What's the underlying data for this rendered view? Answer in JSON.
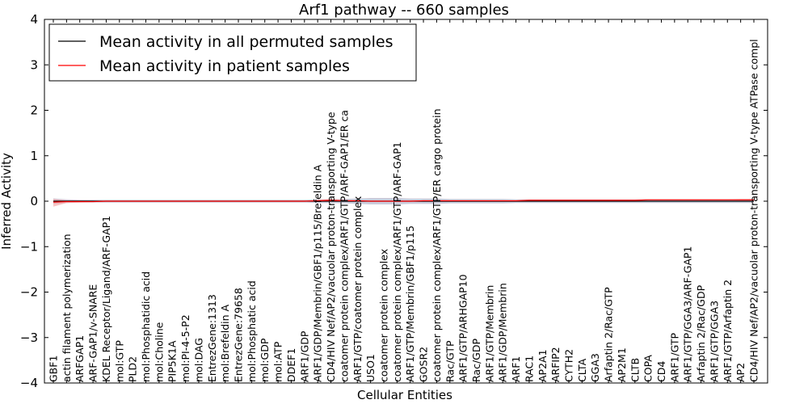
{
  "chart_data": {
    "type": "line",
    "title": "Arf1 pathway -- 660 samples",
    "xlabel": "Cellular Entities",
    "ylabel": "Inferred Activity",
    "ylim": [
      -4,
      4
    ],
    "yticks": [
      "−4",
      "−3",
      "−2",
      "−1",
      "0",
      "1",
      "2",
      "3",
      "4"
    ],
    "yticks_values": [
      -4,
      -3,
      -2,
      -1,
      0,
      1,
      2,
      3,
      4
    ],
    "grid": false,
    "legend_position": "upper-left",
    "categories": [
      "GBF1",
      "actin filament polymerization",
      "ARFGAP1",
      "ARF-GAP1/v-SNARE",
      "KDEL Receptor/Ligand/ARF-GAP1",
      "mol:GTP",
      "PLD2",
      "mol:Phosphatidic acid",
      "mol:Choline",
      "PIP5K1A",
      "mol:PI-4-5-P2",
      "mol:DAG",
      "EntrezGene:1313",
      "mol:Brefeldin A",
      "EntrezGene:79658",
      "mol:Phosphatic acid",
      "mol:GDP",
      "mol:ATP",
      "DDEF1",
      "ARF1/GDP",
      "ARF1/GDP/Membrin/GBF1/p115/Brefeldin A",
      "CD4/HIV Nef/AP2/vacuolar proton-transporting V-type",
      "coatomer protein complex/ARF1/GTP/ARF-GAP1/ER ca",
      "ARF1/GTP/coatomer protein complex",
      "USO1",
      "coatomer protein complex",
      "coatomer protein complex/ARF1/GTP/ARF-GAP1",
      "ARF1/GTP/Membrin/GBF1/p115",
      "GOSR2",
      "coatomer protein complex/ARF1/GTP/ER cargo protein",
      "Rac/GTP",
      "ARF1/GTP/ARHGAP10",
      "Rac/GDP",
      "ARF1/GTP/Membrin",
      "ARF1/GDP/Membrin",
      "ARF1",
      "RAC1",
      "AP2A1",
      "ARFIP2",
      "CYTH2",
      "CLTA",
      "GGA3",
      "Arfaptin 2/Rac/GTP",
      "AP2M1",
      "CLTB",
      "COPA",
      "CD4",
      "ARF1/GTP",
      "ARF1/GTP/GGA3/ARF-GAP1",
      "Arfaptin 2/Rac/GDP",
      "ARF1/GTP/GGA3",
      "ARF1/GTP/Arfaptin 2",
      "AP2",
      "CD4/HIV Nef/AP2/vacuolar proton-transporting V-type ATPase compl"
    ],
    "series": [
      {
        "name": "Mean activity in all permuted samples",
        "color": "#000000",
        "values": [
          0,
          0,
          0,
          0,
          0,
          0,
          0,
          0,
          0,
          0,
          0,
          0,
          0,
          0,
          0,
          0,
          0,
          0,
          0,
          0,
          0,
          0,
          0,
          0,
          0,
          0,
          0,
          0,
          0,
          0,
          0,
          0,
          0,
          0,
          0,
          0,
          0,
          0,
          0,
          0,
          0,
          0,
          0,
          0,
          0,
          0,
          0,
          0,
          0,
          0,
          0,
          0,
          0,
          0
        ],
        "band_upper": [
          0.06,
          0.04,
          0.03,
          0.03,
          0.03,
          0.03,
          0.03,
          0.03,
          0.03,
          0.03,
          0.03,
          0.03,
          0.03,
          0.03,
          0.03,
          0.03,
          0.03,
          0.03,
          0.03,
          0.03,
          0.04,
          0.04,
          0.05,
          0.06,
          0.07,
          0.07,
          0.07,
          0.06,
          0.06,
          0.06,
          0.05,
          0.05,
          0.05,
          0.05,
          0.05,
          0.04,
          0.04,
          0.04,
          0.04,
          0.04,
          0.04,
          0.04,
          0.04,
          0.04,
          0.04,
          0.04,
          0.04,
          0.04,
          0.04,
          0.04,
          0.04,
          0.04,
          0.04,
          0.04
        ],
        "band_lower": [
          -0.06,
          -0.04,
          -0.03,
          -0.03,
          -0.03,
          -0.03,
          -0.03,
          -0.03,
          -0.03,
          -0.03,
          -0.03,
          -0.03,
          -0.03,
          -0.03,
          -0.03,
          -0.03,
          -0.03,
          -0.03,
          -0.03,
          -0.03,
          -0.04,
          -0.04,
          -0.05,
          -0.06,
          -0.07,
          -0.07,
          -0.07,
          -0.06,
          -0.06,
          -0.06,
          -0.05,
          -0.05,
          -0.05,
          -0.05,
          -0.05,
          -0.04,
          -0.04,
          -0.04,
          -0.04,
          -0.04,
          -0.04,
          -0.04,
          -0.04,
          -0.04,
          -0.04,
          -0.04,
          -0.04,
          -0.04,
          -0.04,
          -0.04,
          -0.04,
          -0.04,
          -0.04,
          -0.04
        ],
        "band_color": "#8a8fb0"
      },
      {
        "name": "Mean activity in patient samples",
        "color": "#ff0000",
        "values": [
          -0.02,
          -0.01,
          -0.01,
          -0.01,
          0,
          0,
          0,
          0,
          0,
          0,
          0,
          0,
          0,
          0,
          0,
          0,
          0,
          0,
          0,
          0,
          0.01,
          0.02,
          0.01,
          0.01,
          0,
          0,
          0,
          0,
          0.01,
          0.01,
          0.01,
          0.01,
          0.01,
          0.01,
          0.01,
          0.01,
          0.02,
          0.02,
          0.02,
          0.02,
          0.02,
          0.02,
          0.02,
          0.02,
          0.02,
          0.03,
          0.03,
          0.03,
          0.03,
          0.03,
          0.03,
          0.03,
          0.03,
          0.03
        ],
        "band_upper": [
          0.05,
          0.02,
          0.02,
          0.01,
          0.01,
          0.01,
          0.01,
          0.01,
          0.01,
          0.01,
          0.01,
          0.01,
          0.01,
          0.01,
          0.01,
          0.01,
          0.01,
          0.01,
          0.01,
          0.01,
          0.03,
          0.05,
          0.03,
          0.02,
          0.01,
          0.01,
          0.01,
          0.01,
          0.02,
          0.02,
          0.02,
          0.02,
          0.02,
          0.02,
          0.02,
          0.02,
          0.03,
          0.03,
          0.03,
          0.03,
          0.03,
          0.03,
          0.03,
          0.03,
          0.03,
          0.04,
          0.04,
          0.04,
          0.04,
          0.04,
          0.04,
          0.04,
          0.05,
          0.05
        ],
        "band_lower": [
          -0.12,
          -0.04,
          -0.03,
          -0.02,
          -0.01,
          -0.01,
          -0.01,
          -0.01,
          -0.01,
          -0.01,
          -0.01,
          -0.01,
          -0.01,
          -0.01,
          -0.01,
          -0.01,
          -0.01,
          -0.01,
          -0.01,
          -0.01,
          -0.01,
          -0.01,
          -0.01,
          0,
          -0.01,
          -0.01,
          -0.01,
          -0.01,
          0,
          0,
          0,
          0,
          0,
          0,
          0,
          0,
          0.01,
          0.01,
          0.01,
          0.01,
          0.01,
          0.01,
          0.01,
          0.01,
          0.01,
          0.02,
          0.02,
          0.02,
          0.02,
          0.02,
          0.02,
          0.02,
          0.01,
          0.01
        ],
        "band_color": "#f4a0a0"
      }
    ]
  }
}
